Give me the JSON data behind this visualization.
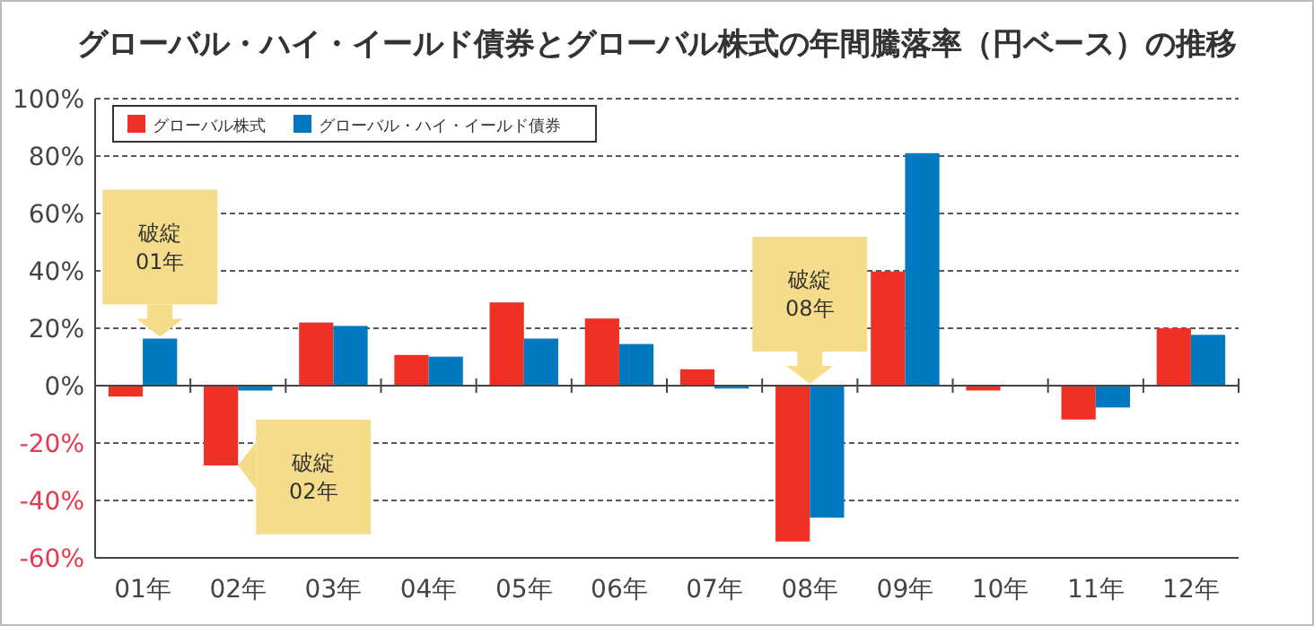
{
  "chart_data": {
    "type": "bar",
    "title": "グローバル・ハイ・イールド債券とグローバル株式の年間騰落率（円ベース）の推移",
    "categories": [
      "01年",
      "02年",
      "03年",
      "04年",
      "05年",
      "06年",
      "07年",
      "08年",
      "09年",
      "10年",
      "11年",
      "12年"
    ],
    "series": [
      {
        "name": "グローバル株式",
        "color": "#ee3124",
        "values": [
          -3.8,
          -27.8,
          22,
          10.7,
          29,
          23.4,
          5.7,
          -54.3,
          39.8,
          -1.7,
          -11.8,
          20
        ]
      },
      {
        "name": "グローバル・ハイ・イールド債券",
        "color": "#0079c1",
        "values": [
          16.4,
          -1.7,
          20.8,
          10.1,
          16.4,
          14.5,
          -1,
          -46,
          81,
          0,
          -7.6,
          17.7
        ]
      }
    ],
    "ylim": [
      -60,
      100
    ],
    "yticks": [
      {
        "value": -60,
        "label": "-60%"
      },
      {
        "value": -40,
        "label": "-40%"
      },
      {
        "value": -20,
        "label": "-20%"
      },
      {
        "value": 0,
        "label": "0%"
      },
      {
        "value": 20,
        "label": "20%"
      },
      {
        "value": 40,
        "label": "40%"
      },
      {
        "value": 60,
        "label": "60%"
      },
      {
        "value": 80,
        "label": "80%"
      },
      {
        "value": 100,
        "label": "100%"
      }
    ],
    "grid": "y",
    "legend": "top left",
    "annotations": [
      {
        "text": "破綻 01年",
        "x": "01年",
        "y": 16.4
      },
      {
        "text": "破綻 02年",
        "x": "02年",
        "y": -27.8
      },
      {
        "text": "破綻 08年",
        "x": "08年",
        "y": 0
      }
    ]
  }
}
